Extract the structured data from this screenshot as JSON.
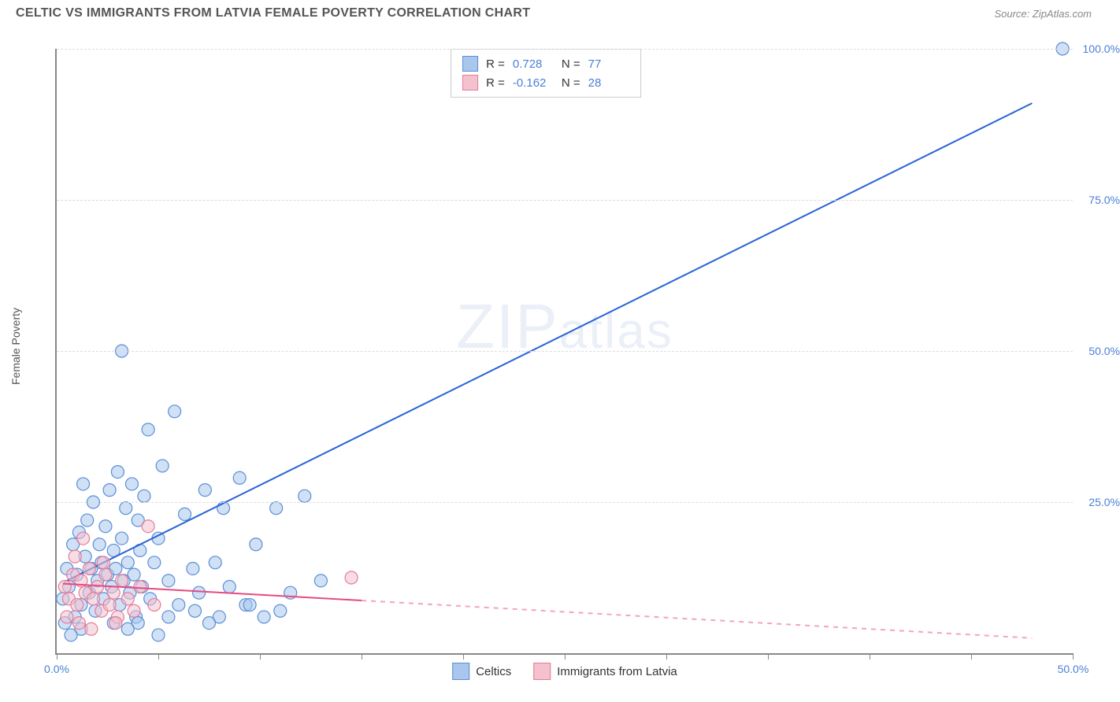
{
  "header": {
    "title": "CELTIC VS IMMIGRANTS FROM LATVIA FEMALE POVERTY CORRELATION CHART",
    "source": "Source: ZipAtlas.com"
  },
  "chart": {
    "type": "scatter",
    "ylabel": "Female Poverty",
    "watermark_zip": "ZIP",
    "watermark_atlas": "atlas",
    "background_color": "#ffffff",
    "grid_color": "#dddddd",
    "axis_color": "#888888",
    "label_fontsize": 14,
    "title_fontsize": 16,
    "xlim": [
      0,
      50
    ],
    "ylim": [
      0,
      100
    ],
    "x_ticks": [
      0,
      5,
      10,
      15,
      20,
      25,
      30,
      35,
      40,
      45,
      50
    ],
    "x_tick_labels_shown": {
      "0": "0.0%",
      "50": "50.0%"
    },
    "y_ticks": [
      25,
      50,
      75,
      100
    ],
    "y_tick_labels": {
      "25": "25.0%",
      "50": "50.0%",
      "75": "75.0%",
      "100": "100.0%"
    },
    "series": [
      {
        "key": "celtics",
        "label": "Celtics",
        "fill_color": "#a9c6ec",
        "stroke_color": "#5a8fd6",
        "fill_opacity": 0.55,
        "marker_radius": 8,
        "R": "0.728",
        "N": "77",
        "regression": {
          "x1": 0.5,
          "y1": 12,
          "x2": 48,
          "y2": 91,
          "color": "#2a63d6",
          "width": 2,
          "dash_after_x": null
        },
        "points": [
          [
            0.3,
            9
          ],
          [
            0.5,
            14
          ],
          [
            0.6,
            11
          ],
          [
            0.8,
            18
          ],
          [
            0.9,
            6
          ],
          [
            1.0,
            13
          ],
          [
            1.1,
            20
          ],
          [
            1.2,
            8
          ],
          [
            1.4,
            16
          ],
          [
            1.5,
            22
          ],
          [
            1.6,
            10
          ],
          [
            1.7,
            14
          ],
          [
            1.8,
            25
          ],
          [
            1.9,
            7
          ],
          [
            2.0,
            12
          ],
          [
            2.1,
            18
          ],
          [
            2.2,
            15
          ],
          [
            2.3,
            9
          ],
          [
            2.4,
            21
          ],
          [
            2.5,
            13
          ],
          [
            2.6,
            27
          ],
          [
            2.7,
            11
          ],
          [
            2.8,
            17
          ],
          [
            2.9,
            14
          ],
          [
            3.0,
            30
          ],
          [
            3.1,
            8
          ],
          [
            3.2,
            19
          ],
          [
            3.3,
            12
          ],
          [
            3.4,
            24
          ],
          [
            3.5,
            15
          ],
          [
            3.6,
            10
          ],
          [
            3.7,
            28
          ],
          [
            3.8,
            13
          ],
          [
            3.9,
            6
          ],
          [
            4.0,
            22
          ],
          [
            4.1,
            17
          ],
          [
            4.2,
            11
          ],
          [
            4.3,
            26
          ],
          [
            4.5,
            37
          ],
          [
            4.6,
            9
          ],
          [
            4.8,
            15
          ],
          [
            5.0,
            19
          ],
          [
            5.2,
            31
          ],
          [
            5.5,
            12
          ],
          [
            5.8,
            40
          ],
          [
            6.0,
            8
          ],
          [
            6.3,
            23
          ],
          [
            6.7,
            14
          ],
          [
            7.0,
            10
          ],
          [
            7.3,
            27
          ],
          [
            7.8,
            15
          ],
          [
            8.2,
            24
          ],
          [
            8.5,
            11
          ],
          [
            9.0,
            29
          ],
          [
            9.3,
            8
          ],
          [
            9.8,
            18
          ],
          [
            10.2,
            6
          ],
          [
            10.8,
            24
          ],
          [
            11.5,
            10
          ],
          [
            12.2,
            26
          ],
          [
            3.2,
            50
          ],
          [
            4.0,
            5
          ],
          [
            5.5,
            6
          ],
          [
            6.8,
            7
          ],
          [
            8.0,
            6
          ],
          [
            9.5,
            8
          ],
          [
            11.0,
            7
          ],
          [
            13.0,
            12
          ],
          [
            49.5,
            100
          ],
          [
            1.2,
            4
          ],
          [
            2.8,
            5
          ],
          [
            3.5,
            4
          ],
          [
            5.0,
            3
          ],
          [
            7.5,
            5
          ],
          [
            0.4,
            5
          ],
          [
            0.7,
            3
          ],
          [
            1.3,
            28
          ]
        ]
      },
      {
        "key": "latvia",
        "label": "Immigrants from Latvia",
        "fill_color": "#f4c1ce",
        "stroke_color": "#e67b9a",
        "fill_opacity": 0.55,
        "marker_radius": 8,
        "R": "-0.162",
        "N": "28",
        "regression": {
          "x1": 0.3,
          "y1": 11.5,
          "x2": 48,
          "y2": 2.5,
          "color": "#e64a7f",
          "width": 2,
          "dash_after_x": 15
        },
        "points": [
          [
            0.4,
            11
          ],
          [
            0.6,
            9
          ],
          [
            0.8,
            13
          ],
          [
            1.0,
            8
          ],
          [
            1.2,
            12
          ],
          [
            1.4,
            10
          ],
          [
            1.6,
            14
          ],
          [
            1.8,
            9
          ],
          [
            2.0,
            11
          ],
          [
            2.2,
            7
          ],
          [
            2.4,
            13
          ],
          [
            2.6,
            8
          ],
          [
            2.8,
            10
          ],
          [
            3.0,
            6
          ],
          [
            3.2,
            12
          ],
          [
            3.5,
            9
          ],
          [
            3.8,
            7
          ],
          [
            4.1,
            11
          ],
          [
            4.5,
            21
          ],
          [
            4.8,
            8
          ],
          [
            0.5,
            6
          ],
          [
            1.1,
            5
          ],
          [
            1.7,
            4
          ],
          [
            2.3,
            15
          ],
          [
            2.9,
            5
          ],
          [
            1.3,
            19
          ],
          [
            0.9,
            16
          ],
          [
            14.5,
            12.5
          ]
        ]
      }
    ],
    "stats_legend": {
      "r_label": "R =",
      "n_label": "N ="
    },
    "bottom_legend": {
      "items": [
        "celtics",
        "latvia"
      ]
    }
  }
}
